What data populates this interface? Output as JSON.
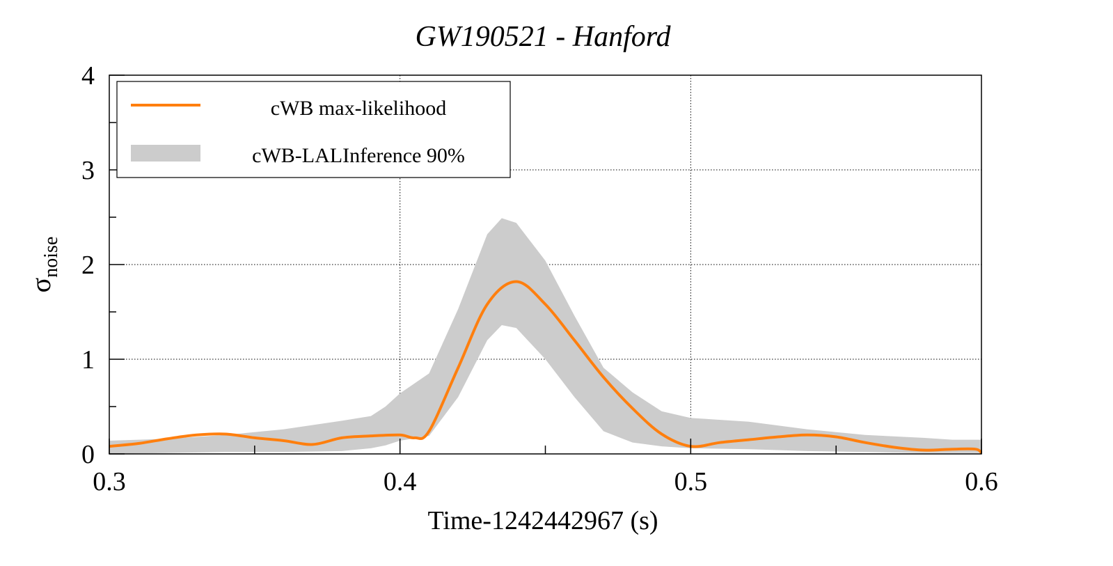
{
  "chart_data": {
    "type": "line",
    "title": "GW190521 - Hanford",
    "xlabel": "Time-1242442967 (s)",
    "ylabel": {
      "main": "σ",
      "sub": "noise"
    },
    "xlim": [
      0.3,
      0.6
    ],
    "ylim": [
      0,
      4
    ],
    "xticks": [
      "0.3",
      "0.4",
      "0.5",
      "0.6"
    ],
    "xtick_values": [
      0.3,
      0.4,
      0.5,
      0.6
    ],
    "yticks": [
      "0",
      "1",
      "2",
      "3",
      "4"
    ],
    "ytick_values": [
      0,
      1,
      2,
      3,
      4
    ],
    "grid": true,
    "legend_position": "top-left",
    "colors": {
      "line": "#ff7f0e",
      "band": "#cccccc"
    },
    "series": [
      {
        "name": "cWB max-likelihood",
        "kind": "line",
        "x": [
          0.3,
          0.31,
          0.32,
          0.33,
          0.34,
          0.35,
          0.36,
          0.37,
          0.38,
          0.39,
          0.4,
          0.405,
          0.41,
          0.42,
          0.43,
          0.44,
          0.45,
          0.46,
          0.47,
          0.48,
          0.49,
          0.5,
          0.51,
          0.52,
          0.53,
          0.54,
          0.55,
          0.56,
          0.57,
          0.58,
          0.59,
          0.598,
          0.6
        ],
        "y": [
          0.08,
          0.11,
          0.16,
          0.2,
          0.21,
          0.17,
          0.14,
          0.1,
          0.17,
          0.19,
          0.2,
          0.17,
          0.24,
          0.91,
          1.58,
          1.82,
          1.58,
          1.2,
          0.81,
          0.48,
          0.21,
          0.08,
          0.12,
          0.15,
          0.18,
          0.2,
          0.18,
          0.12,
          0.07,
          0.04,
          0.05,
          0.05,
          0.01
        ]
      },
      {
        "name": "cWB-LALInference 90%",
        "kind": "band",
        "x": [
          0.3,
          0.32,
          0.34,
          0.36,
          0.38,
          0.39,
          0.395,
          0.4,
          0.41,
          0.42,
          0.43,
          0.435,
          0.44,
          0.45,
          0.46,
          0.47,
          0.48,
          0.49,
          0.5,
          0.52,
          0.54,
          0.56,
          0.58,
          0.59,
          0.6
        ],
        "upper": [
          0.14,
          0.16,
          0.2,
          0.26,
          0.35,
          0.4,
          0.5,
          0.64,
          0.85,
          1.53,
          2.32,
          2.49,
          2.44,
          2.04,
          1.46,
          0.91,
          0.65,
          0.45,
          0.38,
          0.34,
          0.26,
          0.2,
          0.17,
          0.15,
          0.15
        ],
        "lower": [
          0.0,
          0.01,
          0.02,
          0.02,
          0.03,
          0.06,
          0.09,
          0.14,
          0.19,
          0.6,
          1.2,
          1.36,
          1.33,
          1.0,
          0.6,
          0.24,
          0.12,
          0.08,
          0.06,
          0.05,
          0.03,
          0.02,
          0.01,
          0.01,
          0.01
        ]
      }
    ]
  }
}
